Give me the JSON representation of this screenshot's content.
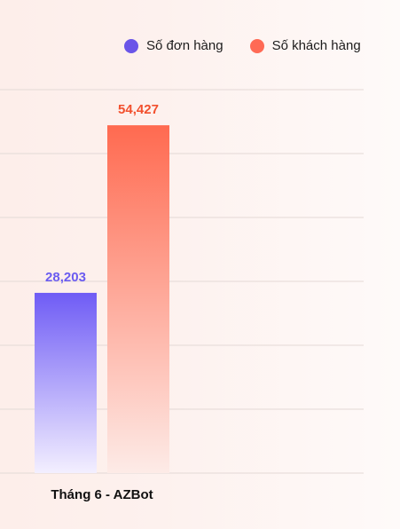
{
  "chart_data": {
    "type": "bar",
    "categories": [
      "Tháng 6 - AZBot"
    ],
    "series": [
      {
        "name": "Số đơn hàng",
        "values": [
          28203
        ],
        "value_label": "28,203"
      },
      {
        "name": "Số khách hàng",
        "values": [
          54427
        ],
        "value_label": "54,427"
      }
    ],
    "ylim": [
      0,
      60000
    ],
    "grid": true,
    "legend_position": "top-right",
    "xlabel": "",
    "ylabel": ""
  },
  "colors": {
    "series_0_top": "#6f5cf5",
    "series_0_bottom": "#f3efff",
    "series_0_label": "#6b5cf0",
    "series_1_top": "#ff6a50",
    "series_1_bottom": "#fdebe7",
    "series_1_label": "#f2502e",
    "series_0_legend": "#6a55e8",
    "series_1_legend": "#ff6a55",
    "gridline": "#e4d9d6"
  }
}
